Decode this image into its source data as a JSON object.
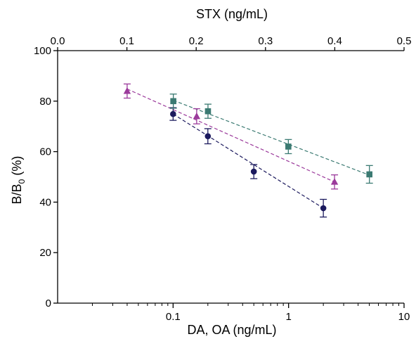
{
  "chart_data": {
    "type": "scatter",
    "title": "",
    "ylabel": "B/B",
    "ylabel_subscript": "0",
    "ylabel_suffix": " (%)",
    "ylim": [
      0,
      100
    ],
    "yticks": [
      0,
      20,
      40,
      60,
      80,
      100
    ],
    "bottom_axis": {
      "label": "DA, OA (ng/mL)",
      "scale": "log",
      "range": [
        0.01,
        10
      ],
      "ticks": [
        {
          "value": 0.1,
          "label": "0.1"
        },
        {
          "value": 1,
          "label": "1"
        },
        {
          "value": 10,
          "label": "10"
        }
      ]
    },
    "top_axis": {
      "label": "STX (ng/mL)",
      "scale": "linear",
      "range": [
        0,
        0.5
      ],
      "ticks": [
        {
          "value": 0.0,
          "label": "0.0"
        },
        {
          "value": 0.1,
          "label": "0.1"
        },
        {
          "value": 0.2,
          "label": "0.2"
        },
        {
          "value": 0.3,
          "label": "0.3"
        },
        {
          "value": 0.4,
          "label": "0.4"
        },
        {
          "value": 0.5,
          "label": "0.5"
        }
      ]
    },
    "series": [
      {
        "axis": "bottom",
        "marker": "circle",
        "color": "#1c1a5e",
        "line_style": "dashed",
        "points": [
          {
            "x": 0.1,
            "y": 74.9,
            "err": 2.5
          },
          {
            "x": 0.2,
            "y": 66.1,
            "err": 3.0
          },
          {
            "x": 0.5,
            "y": 52.1,
            "err": 2.8
          },
          {
            "x": 2.0,
            "y": 37.6,
            "err": 3.5
          }
        ],
        "fit": [
          {
            "x": 0.1,
            "y": 74.9
          },
          {
            "x": 2.0,
            "y": 37.6
          }
        ]
      },
      {
        "axis": "bottom",
        "marker": "triangle",
        "color": "#9b3a9b",
        "line_style": "dashed",
        "points": [
          {
            "x": 0.04,
            "y": 84.0,
            "err": 2.8
          },
          {
            "x": 0.16,
            "y": 74.0,
            "err": 3.0
          },
          {
            "x": 2.5,
            "y": 48.0,
            "err": 2.8
          }
        ],
        "fit": [
          {
            "x": 0.04,
            "y": 84.8
          },
          {
            "x": 2.5,
            "y": 48.0
          }
        ]
      },
      {
        "axis": "top",
        "marker": "square",
        "color": "#3b7a72",
        "line_style": "dashed",
        "points": [
          {
            "x": 0.167,
            "y": 80.0,
            "err": 2.8
          },
          {
            "x": 0.217,
            "y": 76.0,
            "err": 2.8
          },
          {
            "x": 0.333,
            "y": 62.0,
            "err": 2.8
          },
          {
            "x": 0.45,
            "y": 51.0,
            "err": 3.5
          }
        ],
        "fit": [
          {
            "x": 0.167,
            "y": 80.3
          },
          {
            "x": 0.45,
            "y": 50.7
          }
        ]
      }
    ]
  }
}
